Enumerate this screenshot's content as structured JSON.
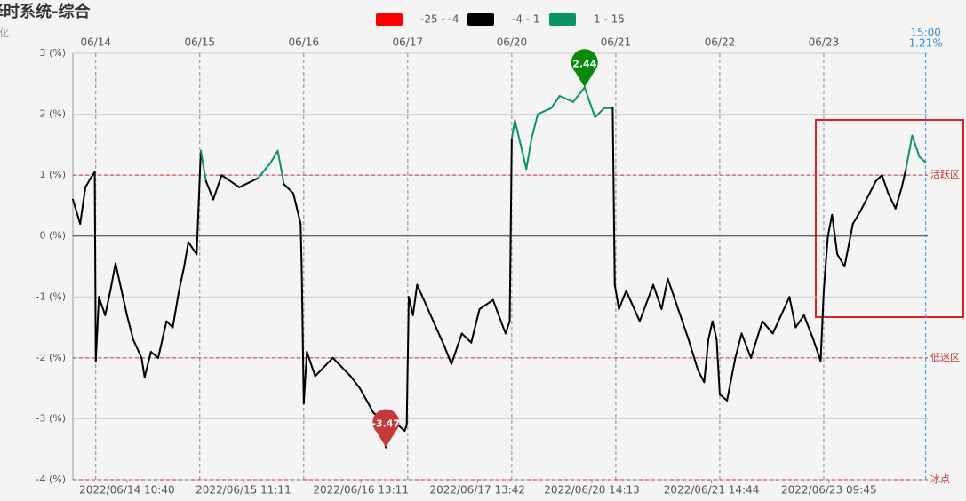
{
  "chart_data": {
    "type": "line",
    "title": "择时系统-综合",
    "subtitle": "变化",
    "xlim": [
      -0.22,
      8
    ],
    "ylim": [
      -4,
      3
    ],
    "yticks": [
      {
        "value": 3,
        "label": "3 (%)"
      },
      {
        "value": 2,
        "label": "2 (%)"
      },
      {
        "value": 1,
        "label": "1 (%)"
      },
      {
        "value": 0,
        "label": "0 (%)"
      },
      {
        "value": -1,
        "label": "-1 (%)"
      },
      {
        "value": -2,
        "label": "-2 (%)"
      },
      {
        "value": -3,
        "label": "-3 (%)"
      },
      {
        "value": -4,
        "label": "-4 (%)"
      }
    ],
    "xticks": [
      {
        "value": 0,
        "label": "06/14"
      },
      {
        "value": 1,
        "label": "06/15"
      },
      {
        "value": 2,
        "label": "06/16"
      },
      {
        "value": 3,
        "label": "06/17"
      },
      {
        "value": 4,
        "label": "06/20"
      },
      {
        "value": 5,
        "label": "06/21"
      },
      {
        "value": 6,
        "label": "06/22"
      },
      {
        "value": 7,
        "label": "06/23"
      }
    ],
    "bottom_ticks": [
      {
        "value": 0.3,
        "label": "2022/06/14 10:40"
      },
      {
        "value": 1.42,
        "label": "2022/06/15 11:11"
      },
      {
        "value": 2.55,
        "label": "2022/06/16 13:11"
      },
      {
        "value": 3.67,
        "label": "2022/06/17 13:42"
      },
      {
        "value": 4.77,
        "label": "2022/06/20 14:13"
      },
      {
        "value": 5.92,
        "label": "2022/06/21 14:44"
      },
      {
        "value": 7.05,
        "label": "2022/06/23 09:45"
      }
    ],
    "bands": [
      {
        "name": "-25 - -4",
        "color": "#ff0000",
        "min": -25,
        "max": -4
      },
      {
        "name": "-4 - 1",
        "color": "#000000",
        "min": -4,
        "max": 1
      },
      {
        "name": "1 - 15",
        "color": "#0a9466",
        "min": 1,
        "max": 15
      }
    ],
    "x": [
      -0.22,
      -0.15,
      -0.1,
      -0.05,
      -0.01,
      0.0,
      0.03,
      0.09,
      0.14,
      0.19,
      0.3,
      0.36,
      0.44,
      0.47,
      0.53,
      0.6,
      0.68,
      0.74,
      0.8,
      0.85,
      0.89,
      0.97,
      1.01,
      1.06,
      1.13,
      1.21,
      1.38,
      1.56,
      1.68,
      1.75,
      1.81,
      1.9,
      1.97,
      1.98,
      2.0,
      2.03,
      2.11,
      2.28,
      2.45,
      2.54,
      2.67,
      2.74,
      2.79,
      2.84,
      2.97,
      2.99,
      3.01,
      3.05,
      3.09,
      3.22,
      3.35,
      3.42,
      3.52,
      3.61,
      3.69,
      3.82,
      3.94,
      3.98,
      4.0,
      4.03,
      4.14,
      4.19,
      4.25,
      4.38,
      4.46,
      4.59,
      4.7,
      4.8,
      4.89,
      4.97,
      4.99,
      5.03,
      5.1,
      5.23,
      5.36,
      5.44,
      5.5,
      5.62,
      5.7,
      5.79,
      5.85,
      5.89,
      5.93,
      5.97,
      6.0,
      6.07,
      6.15,
      6.21,
      6.3,
      6.41,
      6.51,
      6.67,
      6.73,
      6.81,
      6.9,
      6.97,
      7.0,
      7.04,
      7.08,
      7.13,
      7.2,
      7.28,
      7.35,
      7.41,
      7.5,
      7.56,
      7.62,
      7.69,
      7.75,
      7.79,
      7.85,
      7.92,
      7.98
    ],
    "values": [
      0.6,
      0.2,
      0.8,
      0.95,
      1.05,
      -2.05,
      -1.0,
      -1.3,
      -0.9,
      -0.45,
      -1.3,
      -1.7,
      -2.0,
      -2.32,
      -1.9,
      -2.0,
      -1.4,
      -1.5,
      -0.9,
      -0.5,
      -0.1,
      -0.3,
      1.4,
      0.9,
      0.6,
      1.0,
      0.8,
      0.95,
      1.2,
      1.4,
      0.85,
      0.7,
      0.2,
      -0.5,
      -2.75,
      -1.9,
      -2.3,
      -2.0,
      -2.3,
      -2.5,
      -2.9,
      -3.0,
      -3.47,
      -3.0,
      -3.2,
      -3.1,
      -1.0,
      -1.3,
      -0.8,
      -1.3,
      -1.8,
      -2.1,
      -1.6,
      -1.75,
      -1.2,
      -1.05,
      -1.6,
      -1.4,
      1.6,
      1.9,
      1.1,
      1.6,
      2.0,
      2.1,
      2.3,
      2.2,
      2.44,
      1.95,
      2.1,
      2.1,
      -0.8,
      -1.2,
      -0.9,
      -1.4,
      -0.8,
      -1.2,
      -0.7,
      -1.3,
      -1.7,
      -2.2,
      -2.4,
      -1.7,
      -1.4,
      -1.7,
      -2.6,
      -2.7,
      -2.0,
      -1.6,
      -2.0,
      -1.4,
      -1.6,
      -1.0,
      -1.5,
      -1.3,
      -1.7,
      -2.05,
      -0.9,
      0.0,
      0.35,
      -0.3,
      -0.5,
      0.2,
      0.4,
      0.6,
      0.9,
      1.0,
      0.7,
      0.45,
      0.8,
      1.1,
      1.65,
      1.3,
      1.21
    ],
    "last_time": "15:00",
    "last_value_label": "1.21%",
    "markers": [
      {
        "x": 4.7,
        "value": 2.44,
        "color": "#0a8a0a"
      },
      {
        "x": 2.79,
        "value": -3.47,
        "color": "#c23a3a"
      }
    ],
    "ref_lines": [
      {
        "value": 1,
        "label": "活跃区"
      },
      {
        "value": -2,
        "label": "低迷区"
      },
      {
        "value": -4,
        "label": "冰点"
      }
    ]
  }
}
